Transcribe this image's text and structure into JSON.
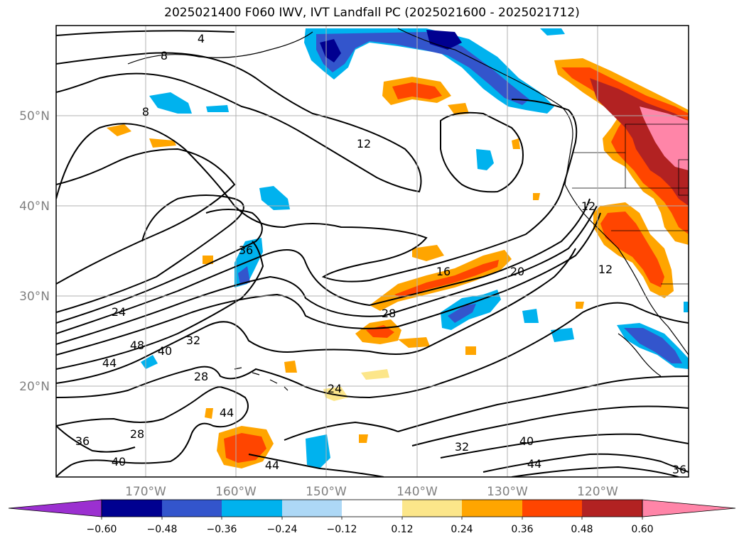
{
  "title": "2025021400 F060 IWV, IVT Landfall PC (2025021600 - 2025021712)",
  "map": {
    "lat_labels": [
      "50°N",
      "40°N",
      "30°N",
      "20°N"
    ],
    "lon_labels": [
      "170°W",
      "160°W",
      "150°W",
      "140°W",
      "130°W",
      "120°W"
    ],
    "contour_labels": [
      "4",
      "8",
      "8",
      "12",
      "12",
      "12",
      "16",
      "20",
      "24",
      "24",
      "28",
      "28",
      "28",
      "32",
      "32",
      "36",
      "36",
      "36",
      "40",
      "40",
      "40",
      "44",
      "44",
      "44",
      "44",
      "48"
    ]
  },
  "colorbar": {
    "tick_labels": [
      "−0.60",
      "−0.48",
      "−0.36",
      "−0.24",
      "−0.12",
      "0.12",
      "0.24",
      "0.36",
      "0.48",
      "0.60"
    ],
    "colors": [
      "#9b30d0",
      "#000090",
      "#3355cc",
      "#00b2ee",
      "#add8f6",
      "#ffffff",
      "#fce68a",
      "#ffa500",
      "#ff4500",
      "#b22222",
      "#ff85a8",
      "#ff85a8"
    ]
  }
}
